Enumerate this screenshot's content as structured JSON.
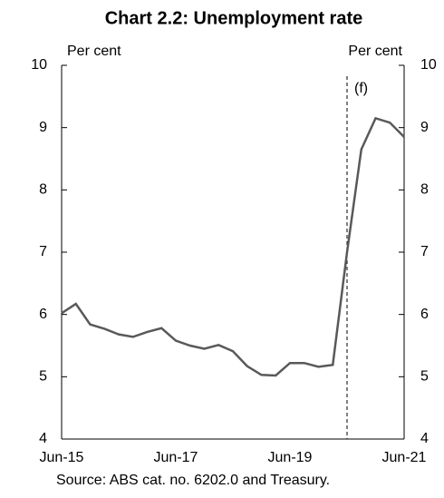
{
  "chart_data": {
    "type": "line",
    "title": "Chart 2.2: Unemployment rate",
    "ylabel": "Per cent",
    "y2label": "Per cent",
    "source": "Source: ABS cat. no. 6202.0 and Treasury.",
    "categories": [
      "Jun-15",
      null,
      null,
      null,
      null,
      null,
      null,
      null,
      "Jun-17",
      null,
      null,
      null,
      null,
      null,
      null,
      null,
      "Jun-19",
      null,
      null,
      null,
      null,
      null,
      null,
      null,
      "Jun-21"
    ],
    "series": [
      {
        "color": "#595959",
        "values": [
          6.02,
          6.17,
          5.84,
          5.77,
          5.68,
          5.64,
          5.72,
          5.78,
          5.58,
          5.5,
          5.45,
          5.51,
          5.41,
          5.17,
          5.03,
          5.02,
          5.22,
          5.22,
          5.16,
          5.19,
          7.0,
          8.65,
          9.15,
          9.08,
          8.85
        ]
      }
    ],
    "ylim": [
      4,
      10
    ],
    "yticks": [
      4,
      5,
      6,
      7,
      8,
      9,
      10
    ],
    "y2lim": [
      4,
      10
    ],
    "y2ticks": [
      4,
      5,
      6,
      7,
      8,
      9,
      10
    ],
    "annotations": [
      {
        "text": "(f)",
        "x": 20
      }
    ]
  }
}
